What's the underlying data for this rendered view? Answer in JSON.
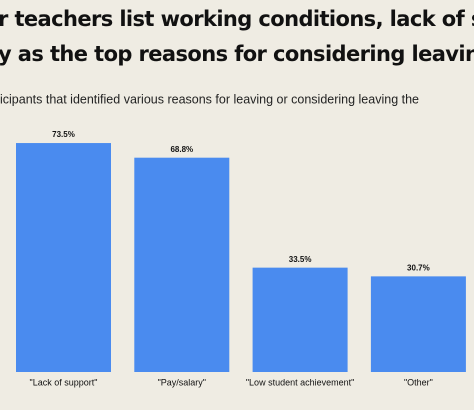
{
  "chart_data": {
    "type": "bar",
    "title": [
      "r teachers list working conditions, lack of supp",
      "y as the top reasons for considering leaving the"
    ],
    "subtitle": "icipants that identified various reasons for leaving or considering leaving the",
    "categories": [
      "\"Lack of support\"",
      "\"Pay/salary\"",
      "\"Low student achievement\"",
      "\"Other\""
    ],
    "values": [
      73.5,
      68.8,
      33.5,
      30.7
    ],
    "value_labels": [
      "73.5%",
      "68.8%",
      "33.5%",
      "30.7%"
    ],
    "color": "#4a8bef"
  }
}
